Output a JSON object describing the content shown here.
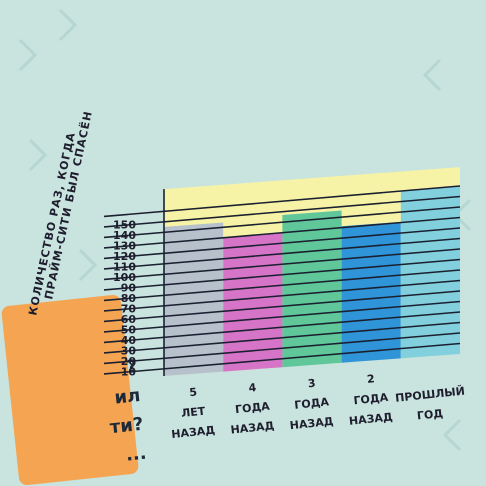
{
  "colors": {
    "background": "#c9e3df",
    "panel": "#f7f3a6",
    "card": "#f5a552",
    "grid_line": "#1b2030"
  },
  "card": {
    "lines": [
      "?",
      "ил",
      "ти?",
      "..."
    ]
  },
  "chart_data": {
    "type": "bar",
    "title": "",
    "ylabel": [
      "КОЛИЧЕСТВО РАЗ, КОГДА",
      "ПРАЙМ-СИТИ БЫЛ СПАСЁН"
    ],
    "xlabel": "",
    "ylim": [
      0,
      160
    ],
    "yticks": [
      10,
      20,
      30,
      40,
      50,
      60,
      70,
      80,
      90,
      100,
      110,
      120,
      130,
      140,
      150
    ],
    "grid": true,
    "categories": [
      [
        "5",
        "ЛЕТ",
        "НАЗАД"
      ],
      [
        "4",
        "ГОДА",
        "НАЗАД"
      ],
      [
        "3",
        "ГОДА",
        "НАЗАД"
      ],
      [
        "2",
        "ГОДА",
        "НАЗАД"
      ],
      [
        "",
        "ПРОШЛЫЙ",
        "ГОД"
      ]
    ],
    "values": [
      142,
      128,
      145,
      130,
      160
    ],
    "bar_colors": [
      "#b6c1cc",
      "#d675c8",
      "#5fc79a",
      "#2f95d8",
      "#82d0de"
    ]
  }
}
